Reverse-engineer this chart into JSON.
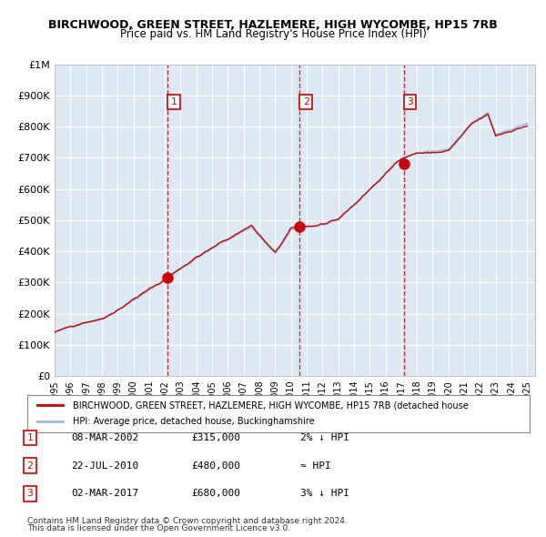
{
  "title1": "BIRCHWOOD, GREEN STREET, HAZLEMERE, HIGH WYCOMBE, HP15 7RB",
  "title2": "Price paid vs. HM Land Registry's House Price Index (HPI)",
  "xlabel": "",
  "ylabel": "",
  "ylim": [
    0,
    1000000
  ],
  "yticks": [
    0,
    100000,
    200000,
    300000,
    400000,
    500000,
    600000,
    700000,
    800000,
    900000,
    1000000
  ],
  "ytick_labels": [
    "£0",
    "£100K",
    "£200K",
    "£300K",
    "£400K",
    "£500K",
    "£600K",
    "£700K",
    "£800K",
    "£900K",
    "£1M"
  ],
  "x_start_year": 1995,
  "x_end_year": 2025,
  "xtick_years": [
    1995,
    1996,
    1997,
    1998,
    1999,
    2000,
    2001,
    2002,
    2003,
    2004,
    2005,
    2006,
    2007,
    2008,
    2009,
    2010,
    2011,
    2012,
    2013,
    2014,
    2015,
    2016,
    2017,
    2018,
    2019,
    2020,
    2021,
    2022,
    2023,
    2024,
    2025
  ],
  "background_color": "#dce9f5",
  "plot_bg_color": "#dce9f5",
  "grid_color": "#ffffff",
  "red_line_color": "#cc0000",
  "blue_line_color": "#99bbdd",
  "dashed_line_color": "#cc0000",
  "marker_color": "#cc0000",
  "sale1_year": 2002.18,
  "sale1_price": 315000,
  "sale1_label": "1",
  "sale2_year": 2010.55,
  "sale2_price": 480000,
  "sale2_label": "2",
  "sale3_year": 2017.16,
  "sale3_price": 680000,
  "sale3_label": "3",
  "legend_red_label": "BIRCHWOOD, GREEN STREET, HAZLEMERE, HIGH WYCOMBE, HP15 7RB (detached house",
  "legend_blue_label": "HPI: Average price, detached house, Buckinghamshire",
  "table_rows": [
    {
      "num": "1",
      "date": "08-MAR-2002",
      "price": "£315,000",
      "note": "2% ↓ HPI"
    },
    {
      "num": "2",
      "date": "22-JUL-2010",
      "price": "£480,000",
      "note": "≈ HPI"
    },
    {
      "num": "3",
      "date": "02-MAR-2017",
      "price": "£680,000",
      "note": "3% ↓ HPI"
    }
  ],
  "footnote1": "Contains HM Land Registry data © Crown copyright and database right 2024.",
  "footnote2": "This data is licensed under the Open Government Licence v3.0."
}
